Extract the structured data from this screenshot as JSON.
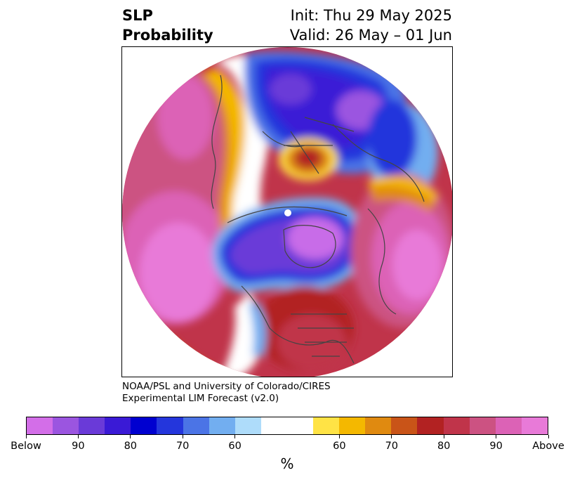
{
  "title": {
    "line1": "SLP",
    "line2": "Probability",
    "init": "Init: Thu 29 May 2025",
    "valid": "Valid: 26 May – 01 Jun"
  },
  "credit": {
    "line1": "NOAA/PSL and University of Colorado/CIRES",
    "line2": "Experimental LIM Forecast (v2.0)"
  },
  "colorbar": {
    "colors": [
      "#d36ee8",
      "#9b55e0",
      "#6a3ad8",
      "#3a1ad6",
      "#0000d0",
      "#2436dc",
      "#4b74e6",
      "#72aef0",
      "#aedcfa",
      "#ffffff",
      "#ffffff",
      "#ffe345",
      "#f4b800",
      "#e08a10",
      "#c95418",
      "#b22222",
      "#c0344a",
      "#cc5282",
      "#dc62b6",
      "#e87ad8"
    ],
    "labels": [
      {
        "text": "Below",
        "boundary": 0
      },
      {
        "text": "90",
        "boundary": 2
      },
      {
        "text": "80",
        "boundary": 4
      },
      {
        "text": "70",
        "boundary": 6
      },
      {
        "text": "60",
        "boundary": 8
      },
      {
        "text": "60",
        "boundary": 12
      },
      {
        "text": "70",
        "boundary": 14
      },
      {
        "text": "80",
        "boundary": 16
      },
      {
        "text": "90",
        "boundary": 18
      },
      {
        "text": "Above",
        "boundary": 20
      }
    ],
    "unit": "%"
  },
  "map": {
    "projection": "polar-stereographic-north",
    "below_color": "#3a1ad6",
    "above_color": "#dc62b6"
  }
}
